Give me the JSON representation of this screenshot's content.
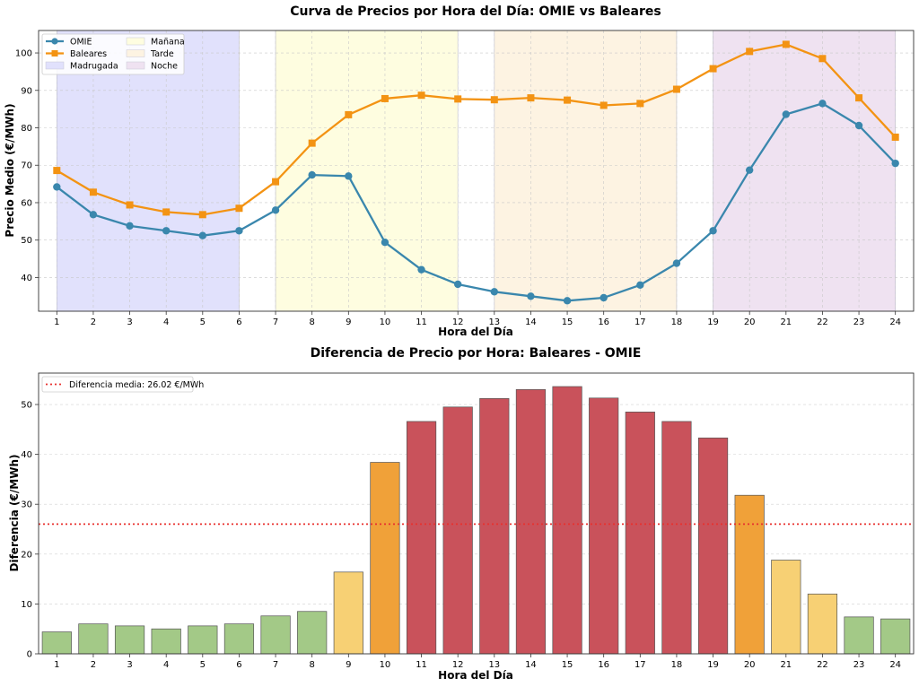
{
  "chart_data": [
    {
      "type": "line",
      "title": "Curva de Precios por Hora del Día: OMIE vs Baleares",
      "xlabel": "Hora del Día",
      "ylabel": "Precio Medio (€/MWh)",
      "x": [
        1,
        2,
        3,
        4,
        5,
        6,
        7,
        8,
        9,
        10,
        11,
        12,
        13,
        14,
        15,
        16,
        17,
        18,
        19,
        20,
        21,
        22,
        23,
        24
      ],
      "xlim": [
        0.5,
        24.5
      ],
      "ylim": [
        31,
        106
      ],
      "yticks": [
        40,
        50,
        60,
        70,
        80,
        90,
        100
      ],
      "grid": true,
      "legend_position": "top-left",
      "series": [
        {
          "name": "OMIE",
          "color": "#3a87ad",
          "marker": "circle",
          "values": [
            64.2,
            56.8,
            53.8,
            52.5,
            51.2,
            52.5,
            58.0,
            67.4,
            67.1,
            49.4,
            42.1,
            38.2,
            36.2,
            35.0,
            33.8,
            34.6,
            38.0,
            43.8,
            52.5,
            68.7,
            83.6,
            86.5,
            80.6,
            70.5
          ]
        },
        {
          "name": "Baleares",
          "color": "#f39313",
          "marker": "square",
          "values": [
            68.6,
            62.8,
            59.4,
            57.5,
            56.8,
            58.5,
            65.6,
            75.9,
            83.5,
            87.8,
            88.7,
            87.7,
            87.5,
            88.0,
            87.4,
            86.0,
            86.5,
            90.3,
            95.8,
            100.4,
            102.3,
            98.5,
            88.0,
            77.5
          ]
        }
      ],
      "bands": [
        {
          "name": "Madrugada",
          "from": 1,
          "to": 6,
          "color": "#e1e1fc"
        },
        {
          "name": "Mañana",
          "from": 7,
          "to": 12,
          "color": "#fefde0"
        },
        {
          "name": "Tarde",
          "from": 13,
          "to": 18,
          "color": "#fdf3e2"
        },
        {
          "name": "Noche",
          "from": 19,
          "to": 24,
          "color": "#efe2f1"
        }
      ]
    },
    {
      "type": "bar",
      "title": "Diferencia de Precio por Hora: Baleares - OMIE",
      "xlabel": "Hora del Día",
      "ylabel": "Diferencia (€/MWh)",
      "categories": [
        "1",
        "2",
        "3",
        "4",
        "5",
        "6",
        "7",
        "8",
        "9",
        "10",
        "11",
        "12",
        "13",
        "14",
        "15",
        "16",
        "17",
        "18",
        "19",
        "20",
        "21",
        "22",
        "23",
        "24"
      ],
      "values": [
        4.4,
        6.0,
        5.6,
        5.0,
        5.6,
        6.0,
        7.6,
        8.5,
        16.4,
        38.4,
        46.6,
        49.5,
        51.2,
        53.0,
        53.6,
        51.3,
        48.5,
        46.6,
        43.3,
        31.8,
        18.8,
        12.0,
        7.4,
        7.0
      ],
      "colors": [
        "#a3c987",
        "#a3c987",
        "#a3c987",
        "#a3c987",
        "#a3c987",
        "#a3c987",
        "#a3c987",
        "#a3c987",
        "#f7d074",
        "#f0a139",
        "#c9525b",
        "#c9525b",
        "#c9525b",
        "#c9525b",
        "#c9525b",
        "#c9525b",
        "#c9525b",
        "#c9525b",
        "#c9525b",
        "#f0a139",
        "#f7d074",
        "#f7d074",
        "#a3c987",
        "#a3c987"
      ],
      "ylim": [
        0,
        56.3
      ],
      "yticks": [
        0,
        10,
        20,
        30,
        40,
        50
      ],
      "grid": true,
      "legend_position": "top-left",
      "reference_line": {
        "label": "Diferencia media: 26.02 €/MWh",
        "value": 26.02,
        "color": "#e8302e"
      }
    }
  ]
}
